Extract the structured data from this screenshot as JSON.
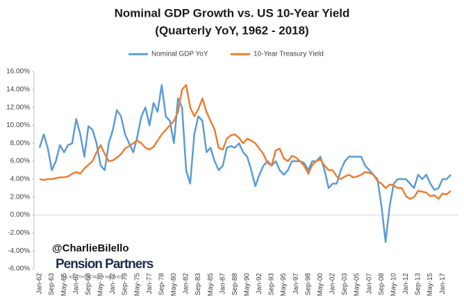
{
  "chart_data": {
    "type": "line",
    "title": "Nominal GDP Growth vs. US 10-Year Yield",
    "subtitle": "(Quarterly YoY, 1962 - 2018)",
    "annotations": [
      "@CharlieBilello",
      "Pension Partners",
      "THE ADAPTIVE ROTATION MANAGERS"
    ],
    "categories": [
      "Jan-62",
      null,
      null,
      "Sep-63",
      null,
      null,
      "May-65",
      null,
      null,
      "Jan-67",
      null,
      null,
      "Sep-68",
      null,
      null,
      "May-70",
      null,
      null,
      "Jan-72",
      null,
      null,
      "Sep-73",
      null,
      null,
      "May-75",
      null,
      null,
      "Jan-77",
      null,
      null,
      "Sep-78",
      null,
      null,
      "May-80",
      null,
      null,
      "Jan-82",
      null,
      null,
      "Sep-83",
      null,
      null,
      "May-85",
      null,
      null,
      "Jan-87",
      null,
      null,
      "Sep-88",
      null,
      null,
      "May-90",
      null,
      null,
      "Jan-92",
      null,
      null,
      "Sep-93",
      null,
      null,
      "May-95",
      null,
      null,
      "Jan-97",
      null,
      null,
      "Sep-98",
      null,
      null,
      "May-00",
      null,
      null,
      "Jan-02",
      null,
      null,
      "Sep-03",
      null,
      null,
      "May-05",
      null,
      null,
      "Jan-07",
      null,
      null,
      "Sep-08",
      null,
      null,
      "May-10",
      null,
      null,
      "Jan-12",
      null,
      null,
      "Sep-13",
      null,
      null,
      "May-15",
      null,
      null,
      "Jan-17",
      null,
      null
    ],
    "series": [
      {
        "name": "Nominal GDP YoY",
        "color": "#5b9bd5",
        "values": [
          7.5,
          9.0,
          7.5,
          5.0,
          6.0,
          7.8,
          7.0,
          7.8,
          8.0,
          10.7,
          9.0,
          6.5,
          9.9,
          9.5,
          8.0,
          5.5,
          5.0,
          8.0,
          9.5,
          11.7,
          11.0,
          9.0,
          8.0,
          7.0,
          8.7,
          11.0,
          12.0,
          10.0,
          12.5,
          11.5,
          14.5,
          11.0,
          10.5,
          8.0,
          13.0,
          12.0,
          5.0,
          3.5,
          9.0,
          11.0,
          10.5,
          7.0,
          7.5,
          6.0,
          5.0,
          5.5,
          7.5,
          7.7,
          7.5,
          8.0,
          7.0,
          6.5,
          5.0,
          3.2,
          4.5,
          5.5,
          6.0,
          5.5,
          6.0,
          5.0,
          4.5,
          5.0,
          6.0,
          6.0,
          6.0,
          5.8,
          5.0,
          6.0,
          6.0,
          6.5,
          5.0,
          3.0,
          3.5,
          3.5,
          5.0,
          6.0,
          6.5,
          6.5,
          6.5,
          6.5,
          5.5,
          5.0,
          4.5,
          4.0,
          1.0,
          -3.0,
          1.0,
          3.5,
          4.0,
          4.0,
          4.0,
          3.5,
          3.0,
          4.5,
          4.0,
          4.5,
          3.5,
          2.8,
          3.0,
          4.0,
          4.0,
          4.5
        ]
      },
      {
        "name": "10-Year Treasury Yield",
        "color": "#ed7d31",
        "values": [
          4.0,
          3.9,
          4.0,
          4.0,
          4.1,
          4.2,
          4.2,
          4.3,
          4.6,
          4.8,
          4.6,
          5.2,
          5.6,
          6.0,
          7.0,
          7.8,
          6.8,
          6.0,
          6.1,
          6.4,
          6.8,
          7.4,
          7.7,
          8.0,
          8.3,
          8.0,
          7.5,
          7.3,
          7.6,
          8.3,
          9.0,
          9.5,
          10.0,
          10.5,
          11.5,
          14.0,
          14.5,
          12.0,
          11.0,
          11.8,
          13.0,
          11.5,
          10.5,
          9.5,
          7.5,
          7.3,
          8.5,
          8.9,
          9.0,
          8.6,
          8.0,
          8.5,
          8.3,
          8.0,
          7.4,
          6.8,
          5.8,
          5.5,
          7.2,
          7.4,
          6.3,
          6.0,
          6.6,
          6.4,
          6.0,
          5.5,
          4.6,
          5.6,
          6.0,
          6.2,
          5.5,
          5.0,
          5.0,
          4.3,
          4.0,
          4.3,
          4.5,
          4.2,
          4.3,
          4.5,
          4.8,
          4.7,
          4.5,
          3.8,
          3.5,
          3.0,
          3.4,
          3.3,
          3.0,
          3.0,
          2.1,
          1.8,
          2.0,
          2.7,
          2.6,
          2.5,
          2.1,
          2.2,
          1.8,
          2.4,
          2.3,
          2.7
        ]
      }
    ],
    "ylim": [
      -6,
      16
    ],
    "yticks": [
      {
        "value": -6,
        "label": "-6.00%"
      },
      {
        "value": -4,
        "label": "-4.00%"
      },
      {
        "value": -2,
        "label": "-2.00%"
      },
      {
        "value": 0,
        "label": "0.00%"
      },
      {
        "value": 2,
        "label": "2.00%"
      },
      {
        "value": 4,
        "label": "4.00%"
      },
      {
        "value": 6,
        "label": "6.00%"
      },
      {
        "value": 8,
        "label": "8.00%"
      },
      {
        "value": 10,
        "label": "10.00%"
      },
      {
        "value": 12,
        "label": "12.00%"
      },
      {
        "value": 14,
        "label": "14.00%"
      },
      {
        "value": 16,
        "label": "16.00%"
      }
    ],
    "legend": "top",
    "grid": false
  }
}
